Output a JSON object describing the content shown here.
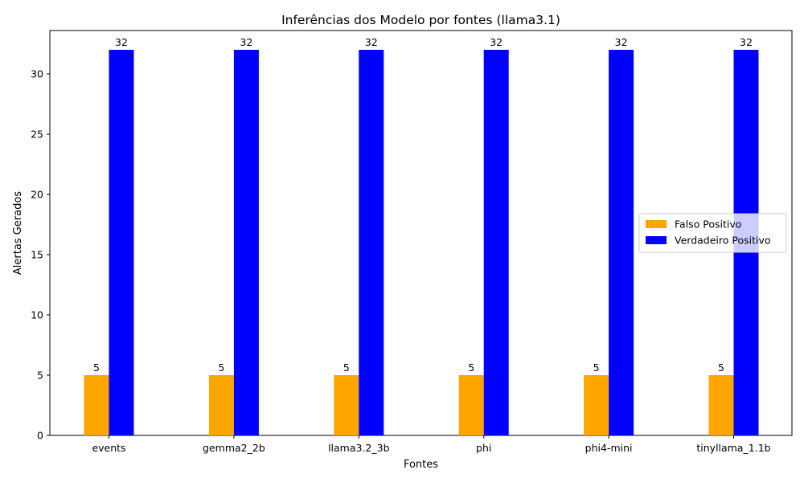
{
  "chart_data": {
    "type": "bar",
    "title": "Inferências dos Modelo por fontes (llama3.1)",
    "xlabel": "Fontes",
    "ylabel": "Alertas Gerados",
    "categories": [
      "events",
      "gemma2_2b",
      "llama3.2_3b",
      "phi",
      "phi4-mini",
      "tinyllama_1.1b"
    ],
    "series": [
      {
        "name": "Falso Positivo",
        "color": "#ffa500",
        "values": [
          5,
          5,
          5,
          5,
          5,
          5
        ]
      },
      {
        "name": "Verdadeiro Positivo",
        "color": "#0000ff",
        "values": [
          32,
          32,
          32,
          32,
          32,
          32
        ]
      }
    ],
    "ylim": [
      0,
      33.6
    ],
    "yticks": [
      0,
      5,
      10,
      15,
      20,
      25,
      30
    ],
    "grid": false,
    "legend_position": "center-right",
    "data_labels": true
  }
}
